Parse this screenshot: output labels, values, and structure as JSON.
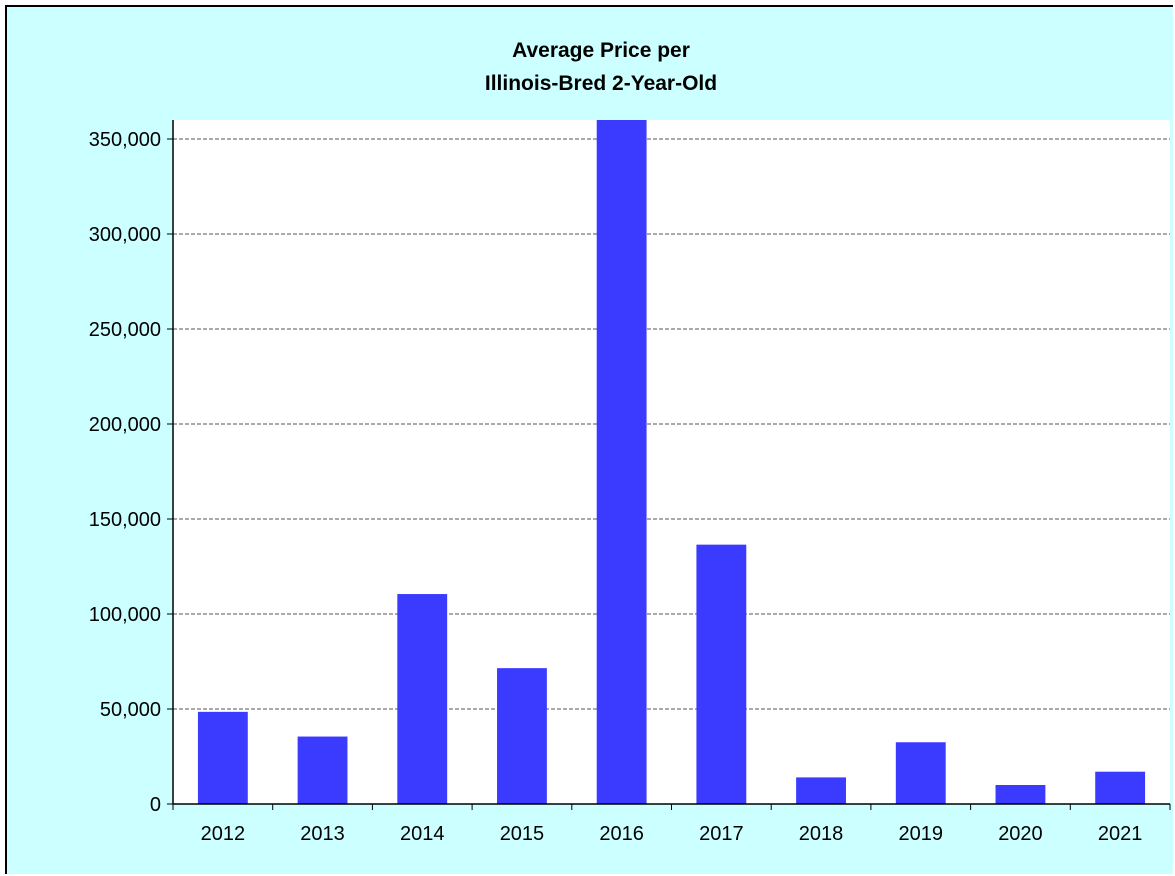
{
  "chart_data": {
    "type": "bar",
    "title": [
      "Average Price per",
      "Illinois-Bred 2-Year-Old"
    ],
    "xlabel": "",
    "ylabel": "",
    "categories": [
      "2012",
      "2013",
      "2014",
      "2015",
      "2016",
      "2017",
      "2018",
      "2019",
      "2020",
      "2021"
    ],
    "values": [
      48500,
      35500,
      110500,
      71500,
      360000,
      136500,
      14000,
      32500,
      10000,
      17000
    ],
    "ylim": [
      0,
      360000
    ],
    "yticks": [
      0,
      50000,
      100000,
      150000,
      200000,
      250000,
      300000,
      350000
    ],
    "ytick_labels": [
      "0",
      "50,000",
      "100,000",
      "150,000",
      "200,000",
      "250,000",
      "300,000",
      "350,000"
    ],
    "grid": true,
    "legend": "none",
    "bar_color": "#3b3bff",
    "background_color": "#ccffff",
    "plot_background_color": "#ffffff"
  }
}
